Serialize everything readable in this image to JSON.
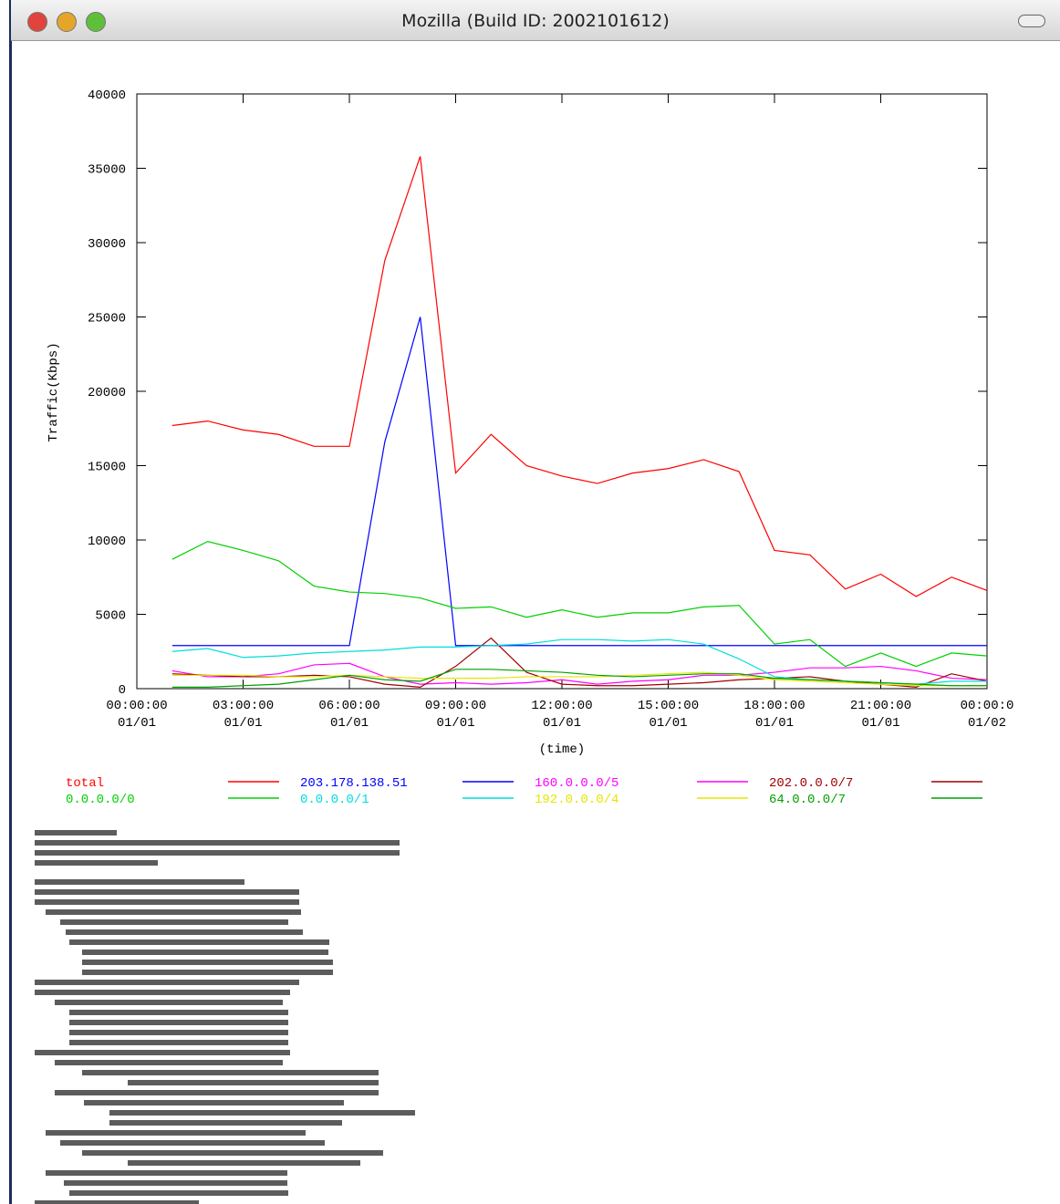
{
  "window": {
    "title": "Mozilla (Build ID: 2002101612)"
  },
  "chart_data": {
    "type": "line",
    "xlabel": "(time)",
    "ylabel": "Traffic(Kbps)",
    "x": [
      1,
      2,
      3,
      4,
      5,
      6,
      7,
      8,
      9,
      10,
      11,
      12,
      13,
      14,
      15,
      16,
      17,
      18,
      19,
      20,
      21,
      22,
      23,
      24
    ],
    "xlim": [
      0,
      24
    ],
    "xticks": [
      {
        "value": 0,
        "label": "00:00:00\n01/01"
      },
      {
        "value": 3,
        "label": "03:00:00\n01/01"
      },
      {
        "value": 6,
        "label": "06:00:00\n01/01"
      },
      {
        "value": 9,
        "label": "09:00:00\n01/01"
      },
      {
        "value": 12,
        "label": "12:00:00\n01/01"
      },
      {
        "value": 15,
        "label": "15:00:00\n01/01"
      },
      {
        "value": 18,
        "label": "18:00:00\n01/01"
      },
      {
        "value": 21,
        "label": "21:00:00\n01/01"
      },
      {
        "value": 24,
        "label": "00:00:0\n01/02"
      }
    ],
    "ylim": [
      0,
      40000
    ],
    "yticks": [
      0,
      5000,
      10000,
      15000,
      20000,
      25000,
      30000,
      35000,
      40000
    ],
    "series": [
      {
        "name": "total",
        "color": "#ff0000",
        "values": [
          17700,
          18000,
          17400,
          17100,
          16300,
          16300,
          28800,
          35800,
          14500,
          17100,
          15000,
          14300,
          13800,
          14500,
          14800,
          15400,
          14600,
          9300,
          9000,
          6700,
          7700,
          6200,
          7500,
          6600
        ]
      },
      {
        "name": "203.178.138.51",
        "color": "#0000ff",
        "values": [
          2900,
          2900,
          2900,
          2900,
          2900,
          2900,
          16600,
          25000,
          2900,
          2900,
          2900,
          2900,
          2900,
          2900,
          2900,
          2900,
          2900,
          2900,
          2900,
          2900,
          2900,
          2900,
          2900,
          2900
        ]
      },
      {
        "name": "160.0.0.0/5",
        "color": "#ff00ff",
        "values": [
          1200,
          800,
          800,
          1000,
          1600,
          1700,
          800,
          300,
          400,
          300,
          400,
          600,
          300,
          500,
          600,
          900,
          900,
          1100,
          1400,
          1400,
          1500,
          1200,
          700,
          600
        ]
      },
      {
        "name": "202.0.0.0/7",
        "color": "#a00000",
        "values": [
          1000,
          900,
          800,
          800,
          900,
          800,
          300,
          100,
          1500,
          3400,
          1100,
          300,
          200,
          200,
          300,
          400,
          600,
          700,
          800,
          500,
          300,
          100,
          1000,
          500
        ]
      },
      {
        "name": "0.0.0.0/0",
        "color": "#00d000",
        "values": [
          8700,
          9900,
          9300,
          8600,
          6900,
          6500,
          6400,
          6100,
          5400,
          5500,
          4800,
          5300,
          4800,
          5100,
          5100,
          5500,
          5600,
          3000,
          3300,
          1500,
          2400,
          1500,
          2400,
          2200
        ]
      },
      {
        "name": "0.0.0.0/1",
        "color": "#00dddd",
        "values": [
          2500,
          2700,
          2100,
          2200,
          2400,
          2500,
          2600,
          2800,
          2800,
          2900,
          3000,
          3300,
          3300,
          3200,
          3300,
          3000,
          2000,
          800,
          600,
          500,
          400,
          300,
          500,
          500
        ]
      },
      {
        "name": "192.0.0.0/4",
        "color": "#e6e600",
        "values": [
          900,
          900,
          900,
          800,
          800,
          900,
          800,
          700,
          700,
          700,
          800,
          800,
          800,
          900,
          1000,
          1100,
          900,
          600,
          500,
          400,
          300,
          200,
          200,
          200
        ]
      },
      {
        "name": "64.0.0.0/7",
        "color": "#00a000",
        "values": [
          100,
          100,
          200,
          300,
          600,
          900,
          600,
          500,
          1300,
          1300,
          1200,
          1100,
          900,
          800,
          900,
          1000,
          1000,
          700,
          600,
          500,
          400,
          300,
          200,
          200
        ]
      }
    ]
  }
}
